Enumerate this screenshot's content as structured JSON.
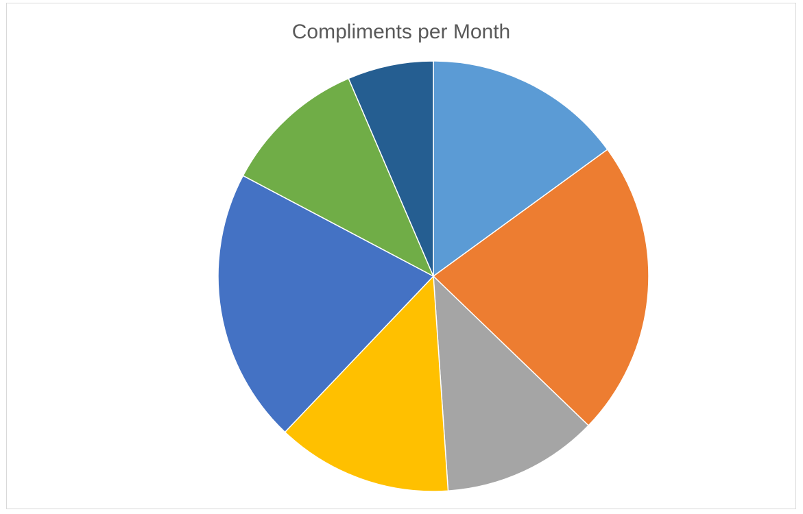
{
  "chart_data": {
    "type": "pie",
    "title": "Compliments per Month",
    "slices": [
      {
        "value": 15.1,
        "color": "#5B9BD5"
      },
      {
        "value": 22.4,
        "color": "#ED7D31"
      },
      {
        "value": 11.8,
        "color": "#A5A5A5"
      },
      {
        "value": 13.3,
        "color": "#FFC000"
      },
      {
        "value": 20.8,
        "color": "#4472C4"
      },
      {
        "value": 10.9,
        "color": "#70AD47"
      },
      {
        "value": 6.5,
        "color": "#255E91"
      }
    ],
    "start_angle_deg": 0,
    "direction": "clockwise",
    "legend": "none"
  }
}
